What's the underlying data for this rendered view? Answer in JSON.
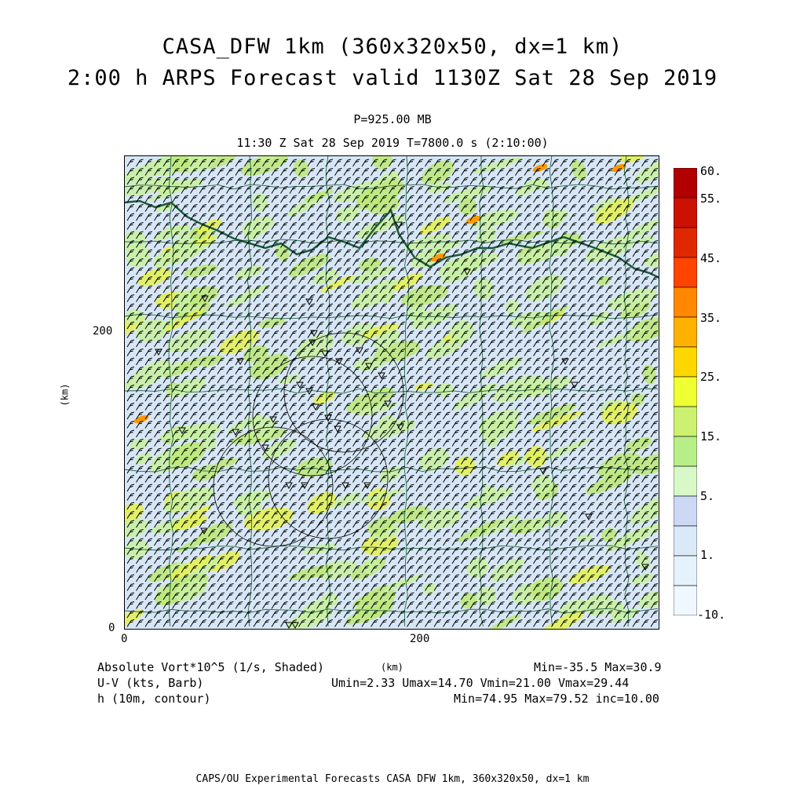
{
  "header": {
    "title_line1": "CASA_DFW 1km (360x320x50, dx=1 km)",
    "title_line2": "2:00 h ARPS Forecast valid 1130Z Sat 28 Sep 2019",
    "pressure": "P=925.00 MB",
    "time_line": "11:30 Z Sat 28 Sep 2019    T=7800.0 s (2:10:00)"
  },
  "axes": {
    "y_label": "(km)",
    "x_label": "(km)",
    "y_ticks": [
      "200",
      "0"
    ],
    "x_ticks": [
      "0",
      "200"
    ]
  },
  "colorbar": {
    "labels": [
      "60.",
      "55.",
      "45.",
      "35.",
      "25.",
      "15.",
      "5.",
      "1.",
      "-10."
    ],
    "colors": [
      "#b20000",
      "#cc1100",
      "#e02800",
      "#ff4400",
      "#ff8800",
      "#ffb000",
      "#ffd700",
      "#eeff33",
      "#ccf070",
      "#b8ee88",
      "#d8f8c8",
      "#ccd8f4",
      "#dae8f8",
      "#e6f2fb",
      "#f0f8ff"
    ]
  },
  "legend": {
    "line1_left": "Absolute Vort*10^5 (1/s, Shaded)",
    "line1_right": "Min=-35.5 Max=30.9",
    "line2_left": "U-V (kts, Barb)",
    "line2_right": "Umin=2.33 Umax=14.70 Vmin=21.00 Vmax=29.44",
    "line3_left": "h (10m, contour)",
    "line3_right": "Min=74.95 Max=79.52 inc=10.00"
  },
  "footer": {
    "text": "CAPS/OU Experimental Forecasts  CASA DFW 1km, 360x320x50, dx=1 km"
  },
  "map": {
    "field_colors": {
      "background": "#d6e6f6",
      "light_green": "#c8f0a0",
      "green": "#bce878",
      "yellow": "#e4f050",
      "orange": "#ff9900",
      "red": "#ff3300"
    },
    "river_color": "#1d5a3a",
    "county_line_color": "#226644",
    "radar_ring_color": "#000000"
  }
}
